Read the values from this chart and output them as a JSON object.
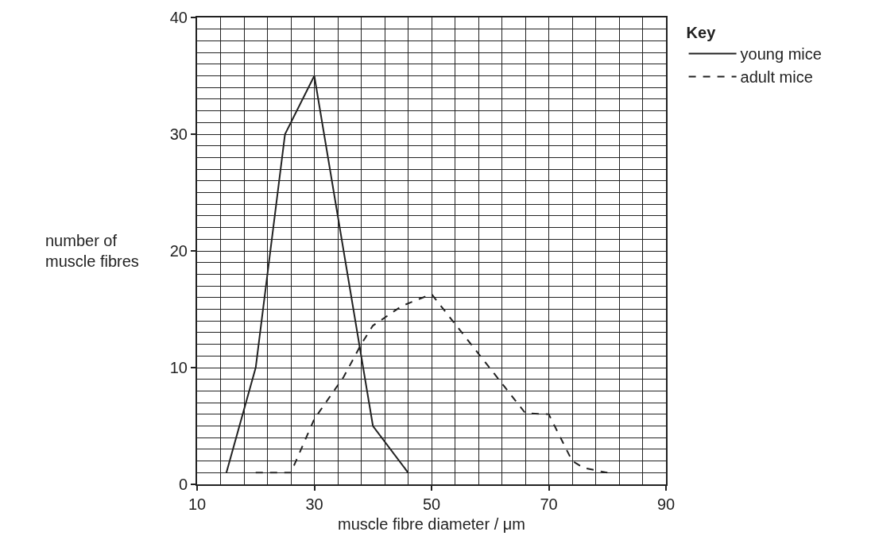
{
  "chart_data": {
    "type": "line",
    "xlabel": "muscle fibre diameter / μm",
    "ylabel": "number of\nmuscle fibres",
    "legend_title": "Key",
    "xlim": [
      10,
      90
    ],
    "xticks": [
      10,
      30,
      50,
      70,
      90
    ],
    "ylim": [
      0,
      40
    ],
    "yticks": [
      0,
      10,
      20,
      30,
      40
    ],
    "grid": true,
    "legend": "top right",
    "marker": "none",
    "series": [
      {
        "name": "young mice",
        "color": "#222222",
        "line_style": "solid",
        "x": [
          15,
          20,
          25,
          30,
          40,
          46
        ],
        "values": [
          1,
          10,
          30,
          35,
          5,
          1
        ]
      },
      {
        "name": "adult mice",
        "color": "#222222",
        "line_style": "dashed",
        "x": [
          20,
          26,
          30,
          35,
          38,
          40,
          45,
          50,
          66,
          70,
          74,
          76,
          80
        ],
        "values": [
          1,
          1,
          5.6,
          9.2,
          12,
          13.6,
          15.3,
          16.3,
          6.1,
          6,
          2,
          1.4,
          1
        ]
      }
    ]
  }
}
